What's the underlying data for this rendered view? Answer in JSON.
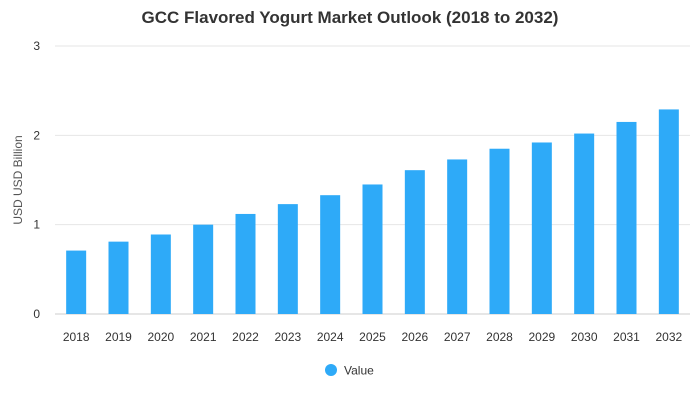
{
  "chart_data": {
    "type": "bar",
    "title": "GCC Flavored Yogurt Market Outlook (2018 to 2032)",
    "xlabel": "",
    "ylabel": "USD USD Billion",
    "categories": [
      "2018",
      "2019",
      "2020",
      "2021",
      "2022",
      "2023",
      "2024",
      "2025",
      "2026",
      "2027",
      "2028",
      "2029",
      "2030",
      "2031",
      "2032"
    ],
    "series": [
      {
        "name": "Value",
        "color": "#2eaaf8",
        "values": [
          0.71,
          0.81,
          0.89,
          1.0,
          1.12,
          1.23,
          1.33,
          1.45,
          1.61,
          1.73,
          1.85,
          1.92,
          2.02,
          2.15,
          2.29
        ]
      }
    ],
    "ylim": [
      0,
      3
    ],
    "yticks": [
      "0",
      "1",
      "2",
      "3"
    ],
    "grid": true,
    "legend": "bottom-center"
  }
}
